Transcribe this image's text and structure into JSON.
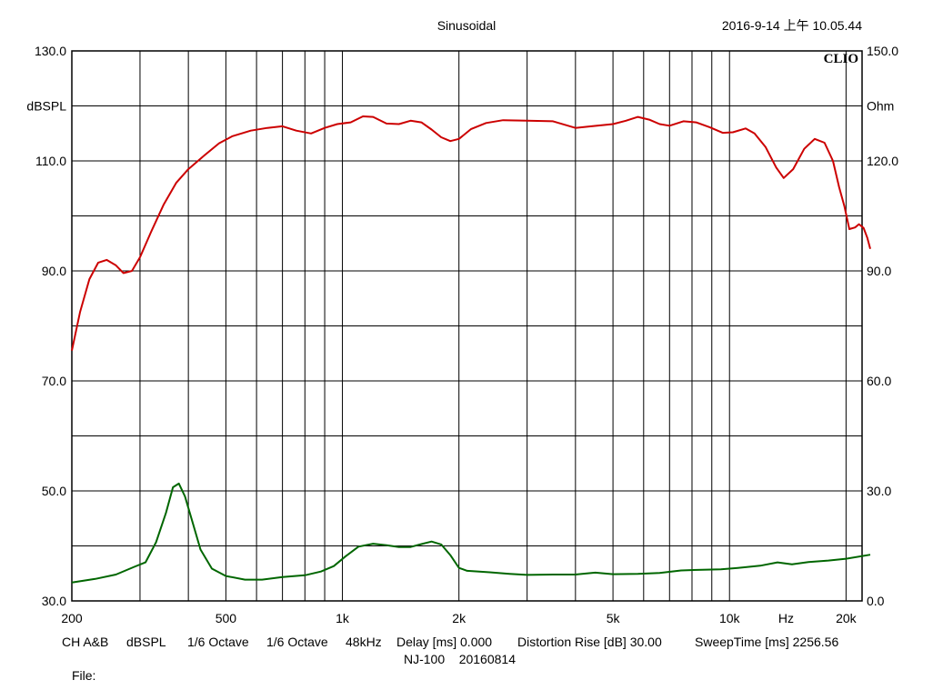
{
  "header": {
    "title": "Sinusoidal",
    "timestamp": "2016-9-14 上午 10.05.44",
    "brand": "CLIO"
  },
  "chart_data": {
    "type": "line",
    "xscale": "log",
    "xlim": [
      200,
      22000
    ],
    "x_tick_values": [
      200,
      500,
      1000,
      2000,
      5000,
      10000,
      20000
    ],
    "x_tick_labels": [
      "200",
      "500",
      "1k",
      "2k",
      "5k",
      "10k",
      "20k"
    ],
    "x_unit_label": "Hz",
    "y_left": {
      "unit_label": "dBSPL",
      "lim": [
        30,
        130
      ],
      "tick_values": [
        130,
        110,
        90,
        70,
        50,
        30
      ],
      "tick_labels": [
        "130.0",
        "110.0",
        "90.0",
        "70.0",
        "50.0",
        "30.0"
      ]
    },
    "y_right": {
      "unit_label": "Ohm",
      "lim": [
        0,
        150
      ],
      "tick_values": [
        150,
        120,
        90,
        60,
        30,
        0
      ],
      "tick_labels": [
        "150.0",
        "120.0",
        "90.0",
        "60.0",
        "30.0",
        "0.0"
      ]
    },
    "grid": true,
    "series": [
      {
        "axis": "left",
        "color": "#cc0000",
        "points": [
          [
            200,
            75.5
          ],
          [
            210,
            82.5
          ],
          [
            222,
            88.5
          ],
          [
            234,
            91.5
          ],
          [
            246,
            92.0
          ],
          [
            260,
            91.0
          ],
          [
            272,
            89.6
          ],
          [
            286,
            90.0
          ],
          [
            300,
            92.5
          ],
          [
            320,
            97.0
          ],
          [
            345,
            102.0
          ],
          [
            372,
            106.0
          ],
          [
            400,
            108.5
          ],
          [
            440,
            111.0
          ],
          [
            480,
            113.2
          ],
          [
            520,
            114.5
          ],
          [
            580,
            115.5
          ],
          [
            640,
            116.0
          ],
          [
            700,
            116.3
          ],
          [
            760,
            115.5
          ],
          [
            830,
            115.0
          ],
          [
            900,
            116.0
          ],
          [
            970,
            116.7
          ],
          [
            1050,
            117.0
          ],
          [
            1130,
            118.1
          ],
          [
            1200,
            118.0
          ],
          [
            1300,
            116.8
          ],
          [
            1400,
            116.7
          ],
          [
            1500,
            117.3
          ],
          [
            1600,
            117.0
          ],
          [
            1700,
            115.7
          ],
          [
            1800,
            114.3
          ],
          [
            1900,
            113.6
          ],
          [
            2000,
            114.0
          ],
          [
            2150,
            115.8
          ],
          [
            2350,
            116.9
          ],
          [
            2600,
            117.4
          ],
          [
            3000,
            117.3
          ],
          [
            3500,
            117.2
          ],
          [
            4000,
            116.0
          ],
          [
            4400,
            116.3
          ],
          [
            5000,
            116.7
          ],
          [
            5400,
            117.3
          ],
          [
            5800,
            118.0
          ],
          [
            6200,
            117.5
          ],
          [
            6600,
            116.7
          ],
          [
            7000,
            116.4
          ],
          [
            7600,
            117.2
          ],
          [
            8200,
            117.0
          ],
          [
            8900,
            116.1
          ],
          [
            9600,
            115.1
          ],
          [
            10200,
            115.2
          ],
          [
            11000,
            115.9
          ],
          [
            11600,
            115.0
          ],
          [
            12400,
            112.5
          ],
          [
            13200,
            108.8
          ],
          [
            13800,
            106.9
          ],
          [
            14600,
            108.5
          ],
          [
            15600,
            112.2
          ],
          [
            16600,
            114.0
          ],
          [
            17600,
            113.3
          ],
          [
            18500,
            110.0
          ],
          [
            19200,
            105.2
          ],
          [
            19800,
            101.8
          ],
          [
            20400,
            97.6
          ],
          [
            21100,
            97.9
          ],
          [
            21600,
            98.5
          ],
          [
            22200,
            97.8
          ],
          [
            22700,
            96.0
          ],
          [
            23100,
            94.0
          ]
        ]
      },
      {
        "axis": "right",
        "color": "#006600",
        "points": [
          [
            200,
            5.0
          ],
          [
            230,
            6.0
          ],
          [
            260,
            7.2
          ],
          [
            290,
            9.3
          ],
          [
            310,
            10.5
          ],
          [
            330,
            16.0
          ],
          [
            350,
            24.0
          ],
          [
            365,
            31.0
          ],
          [
            378,
            32.0
          ],
          [
            392,
            28.5
          ],
          [
            410,
            21.5
          ],
          [
            430,
            14.0
          ],
          [
            460,
            8.8
          ],
          [
            500,
            6.8
          ],
          [
            560,
            5.8
          ],
          [
            620,
            5.8
          ],
          [
            700,
            6.5
          ],
          [
            800,
            7.0
          ],
          [
            880,
            8.0
          ],
          [
            950,
            9.5
          ],
          [
            1020,
            12.2
          ],
          [
            1100,
            14.8
          ],
          [
            1200,
            15.6
          ],
          [
            1300,
            15.2
          ],
          [
            1400,
            14.7
          ],
          [
            1500,
            14.7
          ],
          [
            1600,
            15.5
          ],
          [
            1700,
            16.2
          ],
          [
            1800,
            15.4
          ],
          [
            1900,
            12.5
          ],
          [
            2000,
            9.0
          ],
          [
            2100,
            8.2
          ],
          [
            2400,
            7.8
          ],
          [
            2700,
            7.4
          ],
          [
            3000,
            7.1
          ],
          [
            3500,
            7.2
          ],
          [
            4000,
            7.2
          ],
          [
            4500,
            7.7
          ],
          [
            5000,
            7.3
          ],
          [
            5800,
            7.4
          ],
          [
            6600,
            7.6
          ],
          [
            7500,
            8.3
          ],
          [
            8500,
            8.5
          ],
          [
            9500,
            8.6
          ],
          [
            10500,
            9.0
          ],
          [
            12000,
            9.6
          ],
          [
            13300,
            10.5
          ],
          [
            14500,
            10.0
          ],
          [
            16000,
            10.6
          ],
          [
            18000,
            11.0
          ],
          [
            20000,
            11.5
          ],
          [
            23100,
            12.6
          ]
        ]
      }
    ]
  },
  "footer": {
    "line1": [
      "CH A&B",
      "dBSPL",
      "1/6 Octave",
      "1/6 Octave",
      "48kHz",
      "Delay [ms] 0.000",
      "Distortion Rise [dB] 30.00",
      "SweepTime [ms] 2256.56"
    ],
    "line2": "NJ-100    20160814",
    "file_label": "File:"
  }
}
